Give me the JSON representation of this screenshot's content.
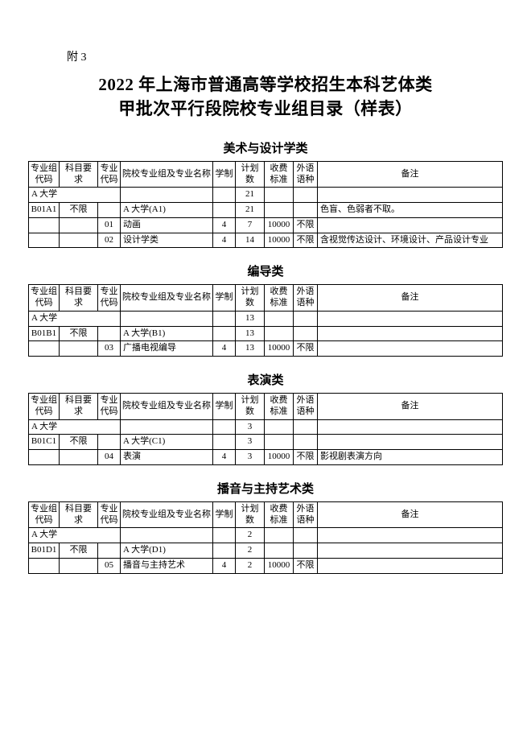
{
  "attachment_label": "附 3",
  "title_line1": "2022 年上海市普通高等学校招生本科艺体类",
  "title_line2": "甲批次平行段院校专业组目录（样表）",
  "headers": {
    "group_code": "专业组代码",
    "subject_req": "科目要求",
    "major_code": "专业代码",
    "school_major": "院校专业组及专业名称",
    "system": "学制",
    "plan": "计划数",
    "fee": "收费标准",
    "lang": "外语语种",
    "note": "备注"
  },
  "sections": [
    {
      "title": "美术与设计学类",
      "university_row": {
        "name": "A 大学",
        "plan": "21"
      },
      "group_row": {
        "code": "B01A1",
        "req": "不限",
        "name": "A 大学(A1)",
        "plan": "21",
        "note": "色盲、色弱者不取。"
      },
      "majors": [
        {
          "code": "01",
          "name": "动画",
          "sys": "4",
          "plan": "7",
          "fee": "10000",
          "lang": "不限",
          "note": ""
        },
        {
          "code": "02",
          "name": "设计学类",
          "sys": "4",
          "plan": "14",
          "fee": "10000",
          "lang": "不限",
          "note": "含视觉传达设计、环境设计、产品设计专业"
        }
      ]
    },
    {
      "title": "编导类",
      "university_row": {
        "name": "A 大学",
        "plan": "13"
      },
      "group_row": {
        "code": "B01B1",
        "req": "不限",
        "name": "A 大学(B1)",
        "plan": "13",
        "note": ""
      },
      "majors": [
        {
          "code": "03",
          "name": "广播电视编导",
          "sys": "4",
          "plan": "13",
          "fee": "10000",
          "lang": "不限",
          "note": ""
        }
      ]
    },
    {
      "title": "表演类",
      "university_row": {
        "name": "A 大学",
        "plan": "3"
      },
      "group_row": {
        "code": "B01C1",
        "req": "不限",
        "name": "A 大学(C1)",
        "plan": "3",
        "note": ""
      },
      "majors": [
        {
          "code": "04",
          "name": "表演",
          "sys": "4",
          "plan": "3",
          "fee": "10000",
          "lang": "不限",
          "note": "影视剧表演方向"
        }
      ]
    },
    {
      "title": "播音与主持艺术类",
      "university_row": {
        "name": "A 大学",
        "plan": "2"
      },
      "group_row": {
        "code": "B01D1",
        "req": "不限",
        "name": "A 大学(D1)",
        "plan": "2",
        "note": ""
      },
      "majors": [
        {
          "code": "05",
          "name": "播音与主持艺术",
          "sys": "4",
          "plan": "2",
          "fee": "10000",
          "lang": "不限",
          "note": ""
        }
      ]
    }
  ]
}
